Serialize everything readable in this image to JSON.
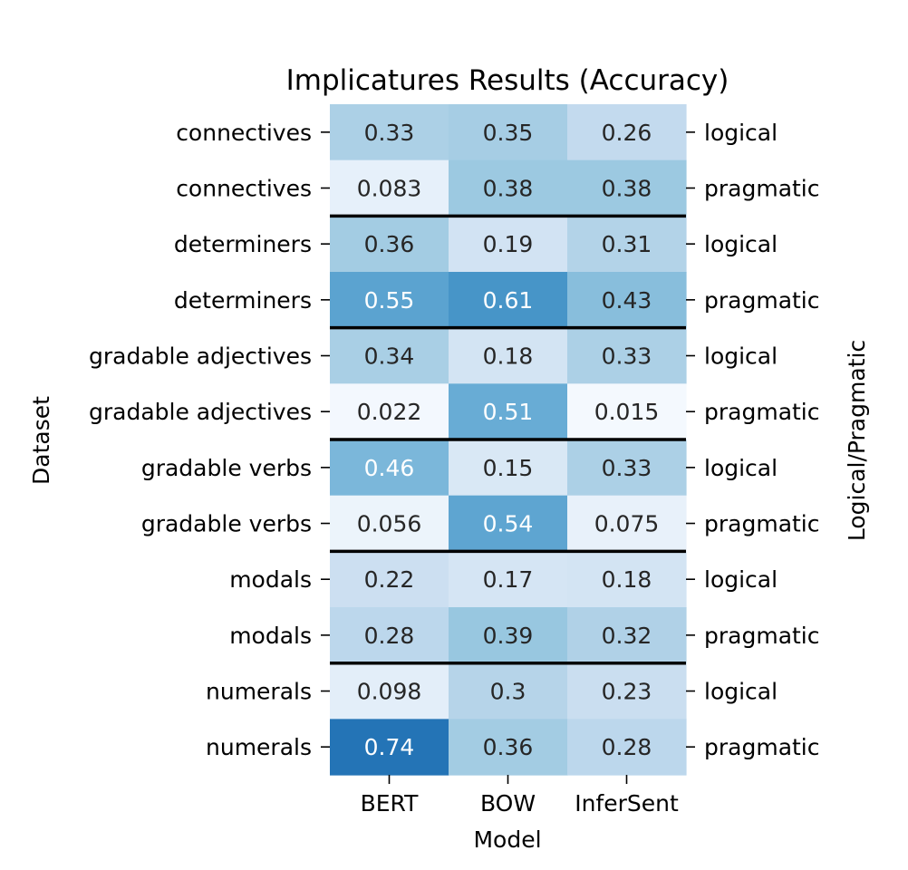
{
  "chart_data": {
    "type": "heatmap",
    "title": "Implicatures Results (Accuracy)",
    "xlabel": "Model",
    "ylabel": "Dataset",
    "ylabel_right": "Logical/Pragmatic",
    "columns": [
      "BERT",
      "BOW",
      "InferSent"
    ],
    "rows": [
      {
        "dataset": "connectives",
        "kind": "logical",
        "values": [
          "0.33",
          "0.35",
          "0.26"
        ]
      },
      {
        "dataset": "connectives",
        "kind": "pragmatic",
        "values": [
          "0.083",
          "0.38",
          "0.38"
        ]
      },
      {
        "dataset": "determiners",
        "kind": "logical",
        "values": [
          "0.36",
          "0.19",
          "0.31"
        ]
      },
      {
        "dataset": "determiners",
        "kind": "pragmatic",
        "values": [
          "0.55",
          "0.61",
          "0.43"
        ]
      },
      {
        "dataset": "gradable adjectives",
        "kind": "logical",
        "values": [
          "0.34",
          "0.18",
          "0.33"
        ]
      },
      {
        "dataset": "gradable adjectives",
        "kind": "pragmatic",
        "values": [
          "0.022",
          "0.51",
          "0.015"
        ]
      },
      {
        "dataset": "gradable verbs",
        "kind": "logical",
        "values": [
          "0.46",
          "0.15",
          "0.33"
        ]
      },
      {
        "dataset": "gradable verbs",
        "kind": "pragmatic",
        "values": [
          "0.056",
          "0.54",
          "0.075"
        ]
      },
      {
        "dataset": "modals",
        "kind": "logical",
        "values": [
          "0.22",
          "0.17",
          "0.18"
        ]
      },
      {
        "dataset": "modals",
        "kind": "pragmatic",
        "values": [
          "0.28",
          "0.39",
          "0.32"
        ]
      },
      {
        "dataset": "numerals",
        "kind": "logical",
        "values": [
          "0.098",
          "0.3",
          "0.23"
        ]
      },
      {
        "dataset": "numerals",
        "kind": "pragmatic",
        "values": [
          "0.74",
          "0.36",
          "0.28"
        ]
      }
    ],
    "colormap": "Blues",
    "color_range": [
      0,
      1
    ],
    "text_color_dark": "#262626",
    "text_color_light": "#ffffff",
    "separator_color": "#000000",
    "separators_between_dataset_groups": true
  }
}
